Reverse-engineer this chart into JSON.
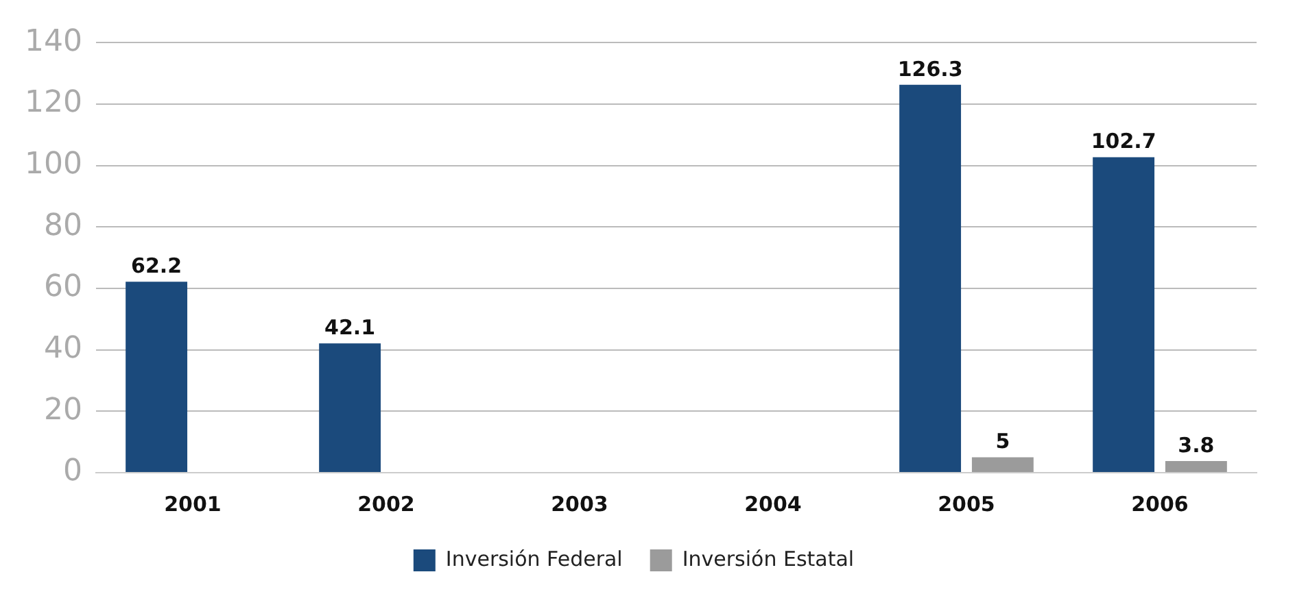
{
  "chart_data": {
    "type": "bar",
    "categories": [
      "2001",
      "2002",
      "2003",
      "2004",
      "2005",
      "2006"
    ],
    "series": [
      {
        "name": "Inversión Federal",
        "color": "#1b4a7c",
        "values": [
          62.2,
          42.1,
          null,
          null,
          126.3,
          102.7
        ]
      },
      {
        "name": "Inversión Estatal",
        "color": "#9b9b9b",
        "values": [
          null,
          null,
          null,
          null,
          5,
          3.8
        ]
      }
    ],
    "ylim": [
      0,
      140
    ],
    "yticks": [
      0,
      20,
      40,
      60,
      80,
      100,
      120,
      140
    ],
    "grid": "y",
    "legend": "bottom",
    "data_labels": true
  }
}
